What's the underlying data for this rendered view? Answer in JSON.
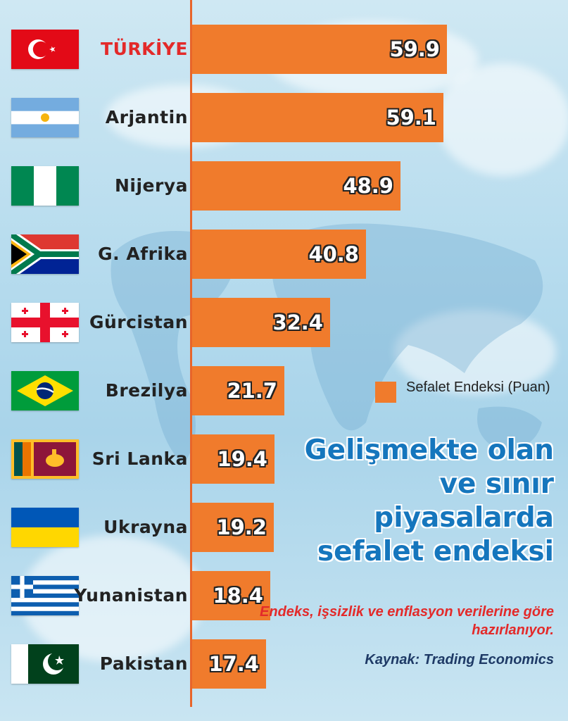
{
  "chart_data": {
    "type": "bar",
    "orientation": "horizontal",
    "categories": [
      "TÜRKİYE",
      "Arjantin",
      "Nijerya",
      "G. Afrika",
      "Gürcistan",
      "Brezilya",
      "Sri Lanka",
      "Ukrayna",
      "Yunanistan",
      "Pakistan"
    ],
    "values": [
      59.9,
      59.1,
      48.9,
      40.8,
      32.4,
      21.7,
      19.4,
      19.2,
      18.4,
      17.4
    ],
    "value_labels": [
      "59.9",
      "59.1",
      "48.9",
      "40.8",
      "32.4",
      "21.7",
      "19.4",
      "19.2",
      "18.4",
      "17.4"
    ],
    "series": [
      {
        "name": "Sefalet Endeksi (Puan)",
        "values": [
          59.9,
          59.1,
          48.9,
          40.8,
          32.4,
          21.7,
          19.4,
          19.2,
          18.4,
          17.4
        ]
      }
    ],
    "title": "Gelişmekte olan ve sınır piyasalarda sefalet endeksi",
    "subtitle": "Endeks, işsizlik ve enflasyon verilerine göre hazırlanıyor.",
    "source": "Kaynak: Trading Economics",
    "legend": "right-middle",
    "grid": false,
    "xlim": [
      0,
      60
    ],
    "bar_color": "#f07b2c",
    "highlight_color": "#e32a2a",
    "flags": [
      "flag-turkey-icon",
      "flag-argentina-icon",
      "flag-nigeria-icon",
      "flag-south-africa-icon",
      "flag-georgia-icon",
      "flag-brazil-icon",
      "flag-sri-lanka-icon",
      "flag-ukraine-icon",
      "flag-greece-icon",
      "flag-pakistan-icon"
    ]
  },
  "legend": {
    "label": "Sefalet Endeksi (Puan)"
  },
  "title": "Gelişmekte olan ve sınır piyasalarda sefalet endeksi",
  "subtitle": "Endeks, işsizlik ve enflasyon verilerine göre hazırlanıyor.",
  "source": "Kaynak: Trading Economics"
}
